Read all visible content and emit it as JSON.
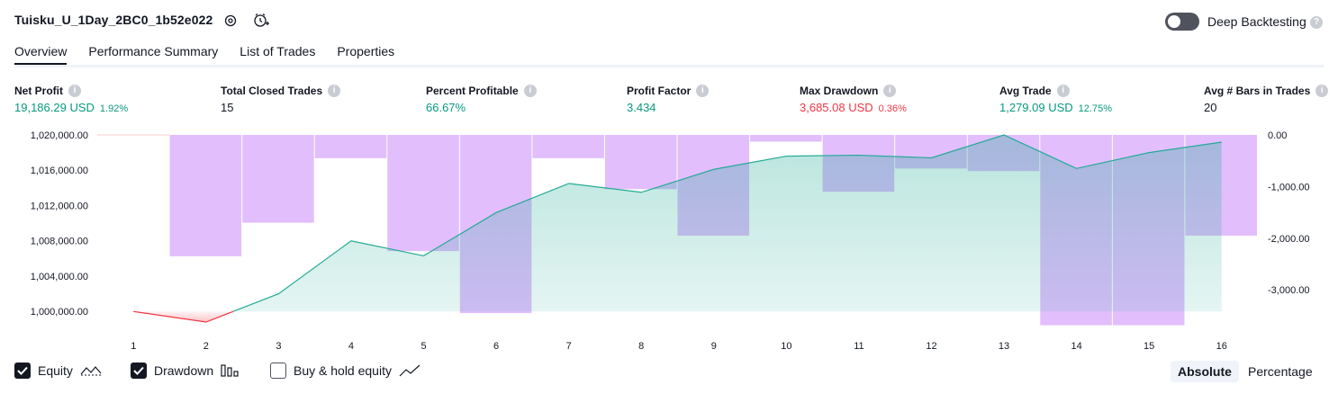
{
  "header": {
    "title": "Tuisku_U_1Day_2BC0_1b52e022",
    "deep_backtesting_label": "Deep Backtesting",
    "deep_backtesting_enabled": false
  },
  "tabs": [
    {
      "label": "Overview",
      "active": true
    },
    {
      "label": "Performance Summary",
      "active": false
    },
    {
      "label": "List of Trades",
      "active": false
    },
    {
      "label": "Properties",
      "active": false
    }
  ],
  "metrics": {
    "net_profit": {
      "label": "Net Profit",
      "value": "19,186.29 USD",
      "pct": "1.92%"
    },
    "total_closed_trades": {
      "label": "Total Closed Trades",
      "value": "15"
    },
    "percent_profitable": {
      "label": "Percent Profitable",
      "value": "66.67%"
    },
    "profit_factor": {
      "label": "Profit Factor",
      "value": "3.434"
    },
    "max_drawdown": {
      "label": "Max Drawdown",
      "value": "3,685.08 USD",
      "pct": "0.36%"
    },
    "avg_trade": {
      "label": "Avg Trade",
      "value": "1,279.09 USD",
      "pct": "12.75%"
    },
    "avg_bars": {
      "label": "Avg # Bars in Trades",
      "value": "20"
    }
  },
  "legend": {
    "equity": {
      "label": "Equity",
      "checked": true
    },
    "drawdown": {
      "label": "Drawdown",
      "checked": true
    },
    "buy_hold": {
      "label": "Buy & hold equity",
      "checked": false
    }
  },
  "view_toggle": {
    "absolute": "Absolute",
    "percentage": "Percentage",
    "selected": "Absolute"
  },
  "colors": {
    "equity_line_positive": "#22ab94",
    "equity_line_negative": "#f23645",
    "equity_fill": "#22ab94",
    "drawdown_bar": "#ce93fb",
    "positive_text": "#089981",
    "negative_text": "#f23645"
  },
  "chart_data": {
    "type": "line",
    "x": [
      1,
      2,
      3,
      4,
      5,
      6,
      7,
      8,
      9,
      10,
      11,
      12,
      13,
      14,
      15,
      16
    ],
    "x_tick_labels": [
      "1",
      "2",
      "3",
      "4",
      "5",
      "6",
      "7",
      "8",
      "9",
      "10",
      "11",
      "12",
      "13",
      "14",
      "15",
      "16"
    ],
    "series": [
      {
        "name": "Equity",
        "axis": "left",
        "values": [
          1000000,
          998800,
          1002000,
          1008000,
          1006300,
          1011200,
          1014500,
          1013500,
          1016100,
          1017600,
          1017700,
          1017400,
          1020000,
          1016200,
          1018000,
          1019186.29
        ]
      },
      {
        "name": "Drawdown",
        "axis": "right",
        "type": "bar",
        "values": [
          0,
          -2350,
          -1700,
          -450,
          -2250,
          -3450,
          -450,
          -1050,
          -1950,
          -130,
          -1100,
          -650,
          -700,
          -3685.08,
          -3685.08,
          -1950
        ]
      }
    ],
    "left_axis": {
      "ticks": [
        "1,000,000.00",
        "1,004,000.00",
        "1,008,000.00",
        "1,012,000.00",
        "1,016,000.00",
        "1,020,000.00"
      ],
      "range": [
        998800,
        1020000
      ]
    },
    "right_axis": {
      "ticks": [
        "0.00",
        "-1,000.00",
        "-2,000.00",
        "-3,000.00"
      ],
      "range": [
        -3685.08,
        0
      ]
    }
  }
}
